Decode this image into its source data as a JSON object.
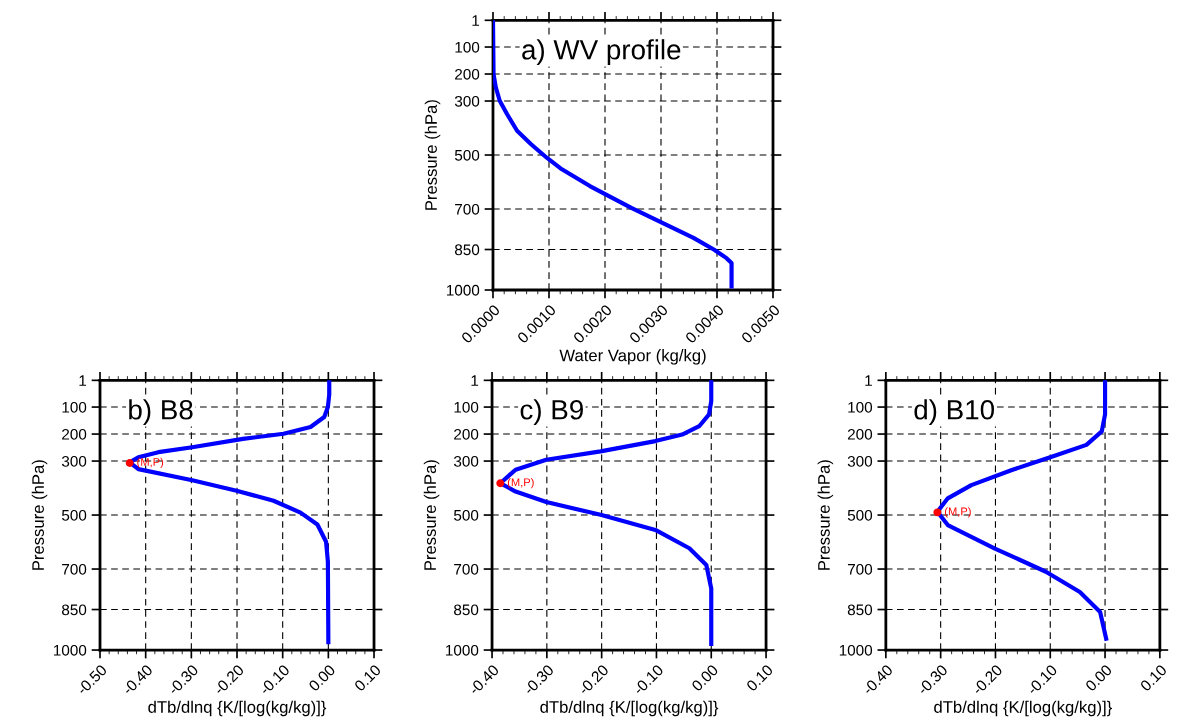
{
  "chart_data": [
    {
      "type": "line",
      "title": "a) WV profile",
      "xlabel": "Water Vapor (kg/kg)",
      "ylabel": "Pressure (hPa)",
      "xlim": [
        0,
        0.005
      ],
      "xticks": [
        {
          "value": 0,
          "label": "0.0000"
        },
        {
          "value": 0.001,
          "label": "0.0010"
        },
        {
          "value": 0.002,
          "label": "0.0020"
        },
        {
          "value": 0.003,
          "label": "0.0030"
        },
        {
          "value": 0.004,
          "label": "0.0040"
        },
        {
          "value": 0.005,
          "label": "0.0050"
        }
      ],
      "ylim": [
        1000,
        1
      ],
      "yticks": [
        1,
        100,
        200,
        300,
        500,
        700,
        850,
        1000
      ],
      "grid": true,
      "legend": false,
      "marker": "none",
      "line_style": "solid",
      "series": [
        {
          "color": "#0000ff",
          "x": [
            0,
            1e-05,
            5e-05,
            0.00012,
            0.00025,
            0.00043,
            0.00068,
            0.00096,
            0.00123,
            0.00173,
            0.00247,
            0.00296,
            0.00358,
            0.00395,
            0.00417,
            0.00426,
            0.00426
          ],
          "values": [
            1,
            200,
            249,
            299,
            348,
            410,
            460,
            510,
            553,
            615,
            696,
            745,
            807,
            851,
            882,
            900,
            987
          ]
        }
      ]
    },
    {
      "type": "line",
      "title": "b) B8",
      "xlabel": "dTb/dlnq {K/[log(kg/kg)]}",
      "ylabel": "Pressure (hPa)",
      "xlim": [
        -0.5,
        0.1
      ],
      "xticks": [
        {
          "value": -0.5,
          "label": "-0.50"
        },
        {
          "value": -0.4,
          "label": "-0.40"
        },
        {
          "value": -0.3,
          "label": "-0.30"
        },
        {
          "value": -0.2,
          "label": "-0.20"
        },
        {
          "value": -0.1,
          "label": "-0.10"
        },
        {
          "value": 0,
          "label": "0.00"
        },
        {
          "value": 0.1,
          "label": "0.10"
        }
      ],
      "ylim": [
        1000,
        1
      ],
      "yticks": [
        1,
        100,
        200,
        300,
        500,
        700,
        850,
        1000
      ],
      "grid": true,
      "legend": false,
      "marker": "none",
      "line_style": "solid",
      "annotations": [
        {
          "text": "(M,P)",
          "x": -0.435,
          "y": 307
        }
      ],
      "series": [
        {
          "color": "#0000ff",
          "x": [
            0.002,
            0.002,
            -0.001,
            -0.009,
            -0.039,
            -0.098,
            -0.187,
            -0.298,
            -0.372,
            -0.416,
            -0.435,
            -0.416,
            -0.298,
            -0.201,
            -0.12,
            -0.061,
            -0.024,
            -0.005,
            -0.001,
            0
          ],
          "values": [
            3,
            53,
            100,
            137,
            174,
            199,
            218,
            249,
            267,
            286,
            305,
            330,
            371,
            410,
            447,
            491,
            535,
            599,
            673,
            971
          ]
        },
        {
          "type": "scatter",
          "marker": "circle",
          "color": "#ff0000",
          "x": [
            -0.435
          ],
          "values": [
            307
          ]
        }
      ]
    },
    {
      "type": "line",
      "title": "c) B9",
      "xlabel": "dTb/dlnq {K/[log(kg/kg)]}",
      "ylabel": "Pressure (hPa)",
      "xlim": [
        -0.4,
        0.1
      ],
      "xticks": [
        {
          "value": -0.4,
          "label": "-0.40"
        },
        {
          "value": -0.3,
          "label": "-0.30"
        },
        {
          "value": -0.2,
          "label": "-0.20"
        },
        {
          "value": -0.1,
          "label": "-0.10"
        },
        {
          "value": 0,
          "label": "0.00"
        },
        {
          "value": 0.1,
          "label": "0.10"
        }
      ],
      "ylim": [
        1000,
        1
      ],
      "yticks": [
        1,
        100,
        200,
        300,
        500,
        700,
        850,
        1000
      ],
      "grid": true,
      "legend": false,
      "marker": "none",
      "line_style": "solid",
      "annotations": [
        {
          "text": "(M,P)",
          "x": -0.385,
          "y": 382
        }
      ],
      "series": [
        {
          "color": "#0000ff",
          "x": [
            0,
            0,
            -0.004,
            -0.022,
            -0.053,
            -0.102,
            -0.202,
            -0.301,
            -0.357,
            -0.385,
            -0.357,
            -0.301,
            -0.202,
            -0.102,
            -0.04,
            -0.009,
            0,
            0
          ],
          "values": [
            3,
            78,
            127,
            171,
            202,
            226,
            264,
            295,
            332,
            382,
            413,
            452,
            499,
            555,
            623,
            685,
            772,
            977
          ]
        },
        {
          "type": "scatter",
          "marker": "circle",
          "color": "#ff0000",
          "x": [
            -0.385
          ],
          "values": [
            382
          ]
        }
      ]
    },
    {
      "type": "line",
      "title": "d) B10",
      "xlabel": "dTb/dlnq {K/[log(kg/kg)]}",
      "ylabel": "Pressure (hPa)",
      "xlim": [
        -0.4,
        0.1
      ],
      "xticks": [
        {
          "value": -0.4,
          "label": "-0.40"
        },
        {
          "value": -0.3,
          "label": "-0.30"
        },
        {
          "value": -0.2,
          "label": "-0.20"
        },
        {
          "value": -0.1,
          "label": "-0.10"
        },
        {
          "value": 0,
          "label": "0.00"
        },
        {
          "value": 0.1,
          "label": "0.10"
        }
      ],
      "ylim": [
        1000,
        1
      ],
      "yticks": [
        1,
        100,
        200,
        300,
        500,
        700,
        850,
        1000
      ],
      "grid": true,
      "legend": false,
      "marker": "none",
      "line_style": "solid",
      "annotations": [
        {
          "text": "(M,P)",
          "x": -0.306,
          "y": 490
        }
      ],
      "series": [
        {
          "color": "#0000ff",
          "x": [
            0,
            0,
            -0.006,
            -0.034,
            -0.096,
            -0.17,
            -0.244,
            -0.287,
            -0.306,
            -0.287,
            -0.201,
            -0.108,
            -0.046,
            -0.009,
            0.002
          ],
          "values": [
            3,
            127,
            190,
            240,
            283,
            333,
            389,
            438,
            488,
            537,
            624,
            710,
            785,
            859,
            958
          ]
        },
        {
          "type": "scatter",
          "marker": "circle",
          "color": "#ff0000",
          "x": [
            -0.306
          ],
          "values": [
            490
          ]
        }
      ]
    }
  ]
}
